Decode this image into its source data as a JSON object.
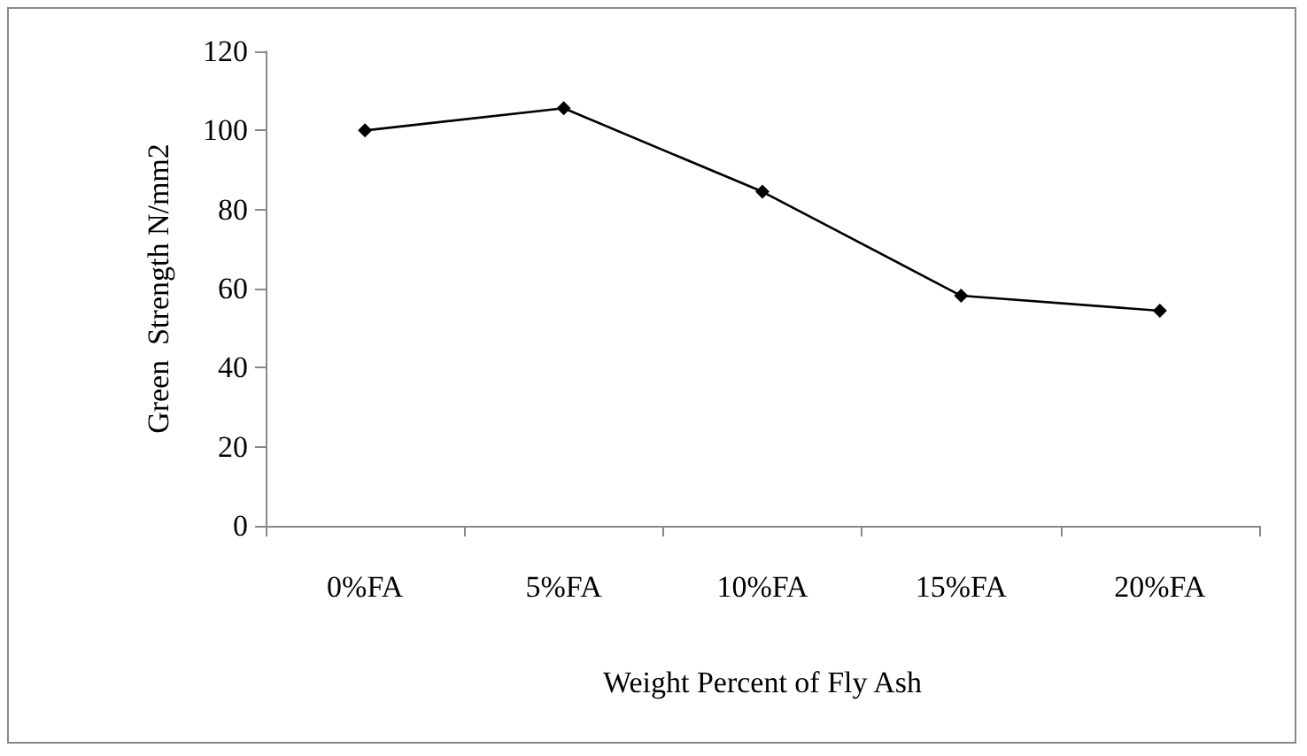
{
  "chart_data": {
    "type": "line",
    "xlabel": "Weight Percent of Fly Ash",
    "ylabel": "Green  Strength N/mm2",
    "categories": [
      "0%FA",
      "5%FA",
      "10%FA",
      "15%FA",
      "20%FA"
    ],
    "series": [
      {
        "color": "#000000",
        "values": [
          100,
          105.6,
          84.5,
          58.2,
          54.4
        ]
      }
    ],
    "ylim": [
      0,
      120
    ],
    "yticks": [
      0,
      20,
      40,
      60,
      80,
      100,
      120
    ],
    "grid": false,
    "marker": "diamond",
    "line_style": "solid"
  }
}
